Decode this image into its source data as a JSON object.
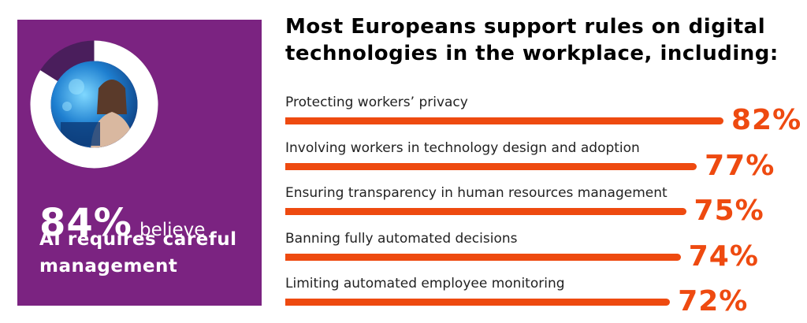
{
  "panel": {
    "stat_value": "84%",
    "stat_word": "believe",
    "stat_line1": "AI requires careful",
    "stat_line2": "management",
    "donut_fraction": 0.84,
    "panel_color": "#7b2381"
  },
  "headline": {
    "line1": "Most Europeans support rules on digital",
    "line2": "technologies in the workplace, including:"
  },
  "chart_data": {
    "type": "bar",
    "orientation": "horizontal",
    "categories": [
      "Protecting workers’ privacy",
      "Involving workers in technology design and adoption",
      "Ensuring transparency in human resources management",
      "Banning fully automated decisions",
      "Limiting automated employee monitoring"
    ],
    "values": [
      82,
      77,
      75,
      74,
      72
    ],
    "value_labels": [
      "82%",
      "77%",
      "75%",
      "74%",
      "72%"
    ],
    "bar_color": "#ee4a10",
    "grid": false
  }
}
